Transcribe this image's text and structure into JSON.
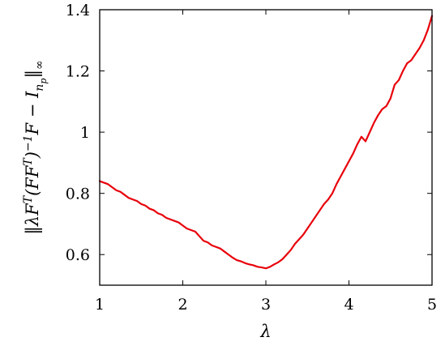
{
  "chart_data": {
    "type": "line",
    "title": "",
    "xlabel": "λ",
    "ylabel": "‖λFᵀ(FFᵀ)⁻¹F − I_{n_p}‖∞",
    "xlim": [
      1,
      5
    ],
    "ylim": [
      0.5,
      1.4
    ],
    "xticks": [
      1,
      2,
      3,
      4,
      5
    ],
    "xtick_labels": [
      "1",
      "2",
      "3",
      "4",
      "5"
    ],
    "yticks": [
      0.6,
      0.8,
      1.0,
      1.2,
      1.4
    ],
    "ytick_labels": [
      "0.6",
      "0.8",
      "1",
      "1.2",
      "1.4"
    ],
    "grid": false,
    "colors": {
      "series": "#e8000b",
      "axes": "#000000"
    },
    "series": [
      {
        "x": [
          1.0,
          1.05,
          1.1,
          1.15,
          1.2,
          1.25,
          1.3,
          1.35,
          1.4,
          1.45,
          1.5,
          1.55,
          1.6,
          1.65,
          1.7,
          1.75,
          1.8,
          1.85,
          1.9,
          1.95,
          2.0,
          2.05,
          2.1,
          2.15,
          2.2,
          2.25,
          2.3,
          2.35,
          2.4,
          2.45,
          2.5,
          2.55,
          2.6,
          2.65,
          2.7,
          2.75,
          2.8,
          2.85,
          2.9,
          2.95,
          3.0,
          3.05,
          3.1,
          3.15,
          3.2,
          3.25,
          3.3,
          3.35,
          3.4,
          3.45,
          3.5,
          3.55,
          3.6,
          3.65,
          3.7,
          3.75,
          3.8,
          3.85,
          3.9,
          3.95,
          4.0,
          4.05,
          4.1,
          4.15,
          4.2,
          4.25,
          4.3,
          4.35,
          4.4,
          4.45,
          4.5,
          4.55,
          4.6,
          4.65,
          4.7,
          4.75,
          4.8,
          4.85,
          4.9,
          4.95,
          5.0
        ],
        "values": [
          0.84,
          0.835,
          0.83,
          0.82,
          0.81,
          0.805,
          0.795,
          0.785,
          0.78,
          0.775,
          0.765,
          0.76,
          0.75,
          0.745,
          0.735,
          0.73,
          0.72,
          0.715,
          0.71,
          0.705,
          0.695,
          0.685,
          0.68,
          0.675,
          0.66,
          0.645,
          0.64,
          0.63,
          0.625,
          0.62,
          0.61,
          0.6,
          0.59,
          0.582,
          0.578,
          0.572,
          0.568,
          0.565,
          0.56,
          0.558,
          0.555,
          0.56,
          0.568,
          0.575,
          0.585,
          0.6,
          0.615,
          0.635,
          0.65,
          0.665,
          0.685,
          0.705,
          0.725,
          0.745,
          0.765,
          0.78,
          0.8,
          0.83,
          0.855,
          0.88,
          0.905,
          0.93,
          0.96,
          0.985,
          0.97,
          1.0,
          1.03,
          1.055,
          1.075,
          1.085,
          1.11,
          1.155,
          1.17,
          1.2,
          1.225,
          1.235,
          1.255,
          1.275,
          1.3,
          1.335,
          1.38
        ]
      }
    ]
  }
}
